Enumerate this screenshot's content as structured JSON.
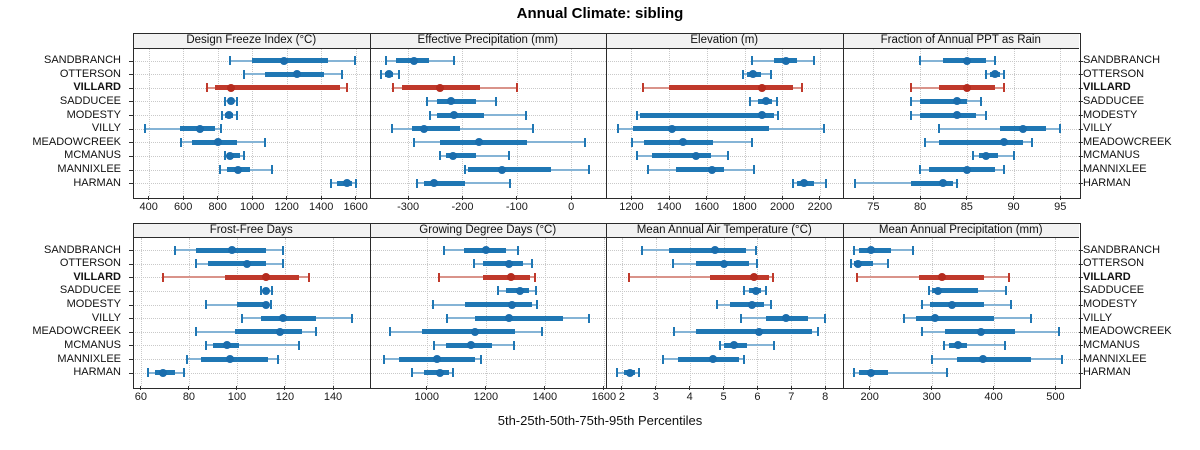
{
  "title": "Annual Climate: sibling",
  "caption": "5th-25th-50th-75th-95th Percentiles",
  "stations": [
    "SANDBRANCH",
    "OTTERSON",
    "VILLARD",
    "SADDUCEE",
    "MODESTY",
    "VILLY",
    "MEADOWCREEK",
    "MCMANUS",
    "MANNIXLEE",
    "HARMAN"
  ],
  "highlight_station": "VILLARD",
  "percentile_labels": [
    "5th",
    "25th",
    "50th",
    "75th",
    "95th"
  ],
  "colors": {
    "blue_main": "#1f77b4",
    "blue_light": "#85b4d6",
    "blue_dot": "#1a6dad",
    "red_main": "#c0392b",
    "red_light": "#d9938a",
    "red_dot": "#b52b1e",
    "strip_bg": "#f2f2f2",
    "panel_border": "#2b2b2b",
    "grid": "#c9c9c9",
    "text": "#111111"
  },
  "chart_data": [
    {
      "type": "percentile_dotplot",
      "key": "design_freeze_index",
      "title": "Design Freeze Index (°C)",
      "row": 0,
      "col": 0,
      "xlim": [
        309,
        1680
      ],
      "ticks": [
        {
          "value": 400,
          "label": "400"
        },
        {
          "value": 600,
          "label": "600"
        },
        {
          "value": 800,
          "label": "800"
        },
        {
          "value": 1000,
          "label": "1000"
        },
        {
          "value": 1200,
          "label": "1200"
        },
        {
          "value": 1400,
          "label": "1400"
        },
        {
          "value": 1600,
          "label": "1600"
        }
      ],
      "values": {
        "SANDBRANCH": [
          870,
          1000,
          1185,
          1440,
          1595
        ],
        "OTTERSON": [
          950,
          1075,
          1260,
          1415,
          1520
        ],
        "VILLARD": [
          740,
          785,
          875,
          1510,
          1550
        ],
        "SADDUCEE": [
          845,
          860,
          880,
          895,
          910
        ],
        "MODESTY": [
          825,
          845,
          865,
          890,
          910
        ],
        "VILLY": [
          380,
          580,
          700,
          785,
          820
        ],
        "MEADOWCREEK": [
          590,
          650,
          800,
          910,
          1075
        ],
        "MCMANUS": [
          845,
          855,
          870,
          930,
          950
        ],
        "MANNIXLEE": [
          815,
          855,
          920,
          990,
          1115
        ],
        "HARMAN": [
          1455,
          1490,
          1550,
          1580,
          1600
        ]
      }
    },
    {
      "type": "percentile_dotplot",
      "key": "effective_precipitation",
      "title": "Effective Precipitation (mm)",
      "row": 0,
      "col": 1,
      "xlim": [
        -371,
        64
      ],
      "ticks": [
        {
          "value": -300,
          "label": "-300"
        },
        {
          "value": -200,
          "label": "-200"
        },
        {
          "value": -100,
          "label": "-100"
        },
        {
          "value": 0,
          "label": "0"
        }
      ],
      "values": {
        "SANDBRANCH": [
          -340,
          -323,
          -290,
          -262,
          -216
        ],
        "OTTERSON": [
          -350,
          -343,
          -335,
          -327,
          -317
        ],
        "VILLARD": [
          -327,
          -311,
          -241,
          -167,
          -100
        ],
        "SADDUCEE": [
          -265,
          -247,
          -222,
          -176,
          -139
        ],
        "MODESTY": [
          -259,
          -247,
          -216,
          -161,
          -84
        ],
        "VILLY": [
          -330,
          -293,
          -270,
          -204,
          -71
        ],
        "MEADOWCREEK": [
          -290,
          -241,
          -170,
          -81,
          26
        ],
        "MCMANUS": [
          -241,
          -231,
          -218,
          -176,
          -115
        ],
        "MANNIXLEE": [
          -195,
          -189,
          -127,
          -38,
          32
        ],
        "HARMAN": [
          -284,
          -271,
          -253,
          -195,
          -112
        ]
      }
    },
    {
      "type": "percentile_dotplot",
      "key": "elevation",
      "title": "Elevation (m)",
      "row": 0,
      "col": 2,
      "xlim": [
        1065,
        2320
      ],
      "ticks": [
        {
          "value": 1200,
          "label": "1200"
        },
        {
          "value": 1400,
          "label": "1400"
        },
        {
          "value": 1600,
          "label": "1600"
        },
        {
          "value": 1800,
          "label": "1800"
        },
        {
          "value": 2000,
          "label": "2000"
        },
        {
          "value": 2200,
          "label": "2200"
        }
      ],
      "values": {
        "SANDBRANCH": [
          1840,
          1955,
          2020,
          2080,
          2170
        ],
        "OTTERSON": [
          1790,
          1815,
          1845,
          1885,
          1940
        ],
        "VILLARD": [
          1260,
          1400,
          1895,
          2060,
          2105
        ],
        "SADDUCEE": [
          1830,
          1870,
          1915,
          1945,
          1975
        ],
        "MODESTY": [
          1230,
          1245,
          1895,
          1955,
          1980
        ],
        "VILLY": [
          1130,
          1210,
          1415,
          1930,
          2220
        ],
        "MEADOWCREEK": [
          1205,
          1265,
          1475,
          1635,
          1840
        ],
        "MCMANUS": [
          1230,
          1310,
          1545,
          1620,
          1715
        ],
        "MANNIXLEE": [
          1290,
          1435,
          1630,
          1690,
          1850
        ],
        "HARMAN": [
          2055,
          2080,
          2115,
          2170,
          2230
        ]
      }
    },
    {
      "type": "percentile_dotplot",
      "key": "fraction_ppt_rain",
      "title": "Fraction of Annual PPT as Rain",
      "row": 0,
      "col": 3,
      "xlim": [
        71.7,
        97.0
      ],
      "ticks": [
        {
          "value": 75,
          "label": "75"
        },
        {
          "value": 80,
          "label": "80"
        },
        {
          "value": 85,
          "label": "85"
        },
        {
          "value": 90,
          "label": "90"
        },
        {
          "value": 95,
          "label": "95"
        }
      ],
      "values": {
        "SANDBRANCH": [
          80,
          82.5,
          85,
          87,
          88
        ],
        "OTTERSON": [
          87,
          87.5,
          88,
          88.6,
          89
        ],
        "VILLARD": [
          79,
          82,
          85,
          88,
          89
        ],
        "SADDUCEE": [
          79,
          80,
          84,
          85,
          86.5
        ],
        "MODESTY": [
          79,
          80,
          84,
          86,
          87
        ],
        "VILLY": [
          82,
          88.5,
          91,
          93.5,
          95
        ],
        "MEADOWCREEK": [
          80.5,
          82,
          89,
          91,
          92
        ],
        "MCMANUS": [
          85.7,
          86.3,
          87,
          88.3,
          90
        ],
        "MANNIXLEE": [
          80,
          81,
          85,
          88,
          89
        ],
        "HARMAN": [
          73,
          79,
          82.5,
          83.5,
          84
        ]
      }
    },
    {
      "type": "percentile_dotplot",
      "key": "frost_free_days",
      "title": "Frost-Free Days",
      "row": 1,
      "col": 0,
      "xlim": [
        56.7,
        155.2
      ],
      "ticks": [
        {
          "value": 60,
          "label": "60"
        },
        {
          "value": 80,
          "label": "80"
        },
        {
          "value": 100,
          "label": "100"
        },
        {
          "value": 120,
          "label": "120"
        },
        {
          "value": 140,
          "label": "140"
        }
      ],
      "values": {
        "SANDBRANCH": [
          74,
          83,
          98,
          112,
          119
        ],
        "OTTERSON": [
          83,
          88,
          104,
          112,
          119
        ],
        "VILLARD": [
          69,
          95,
          112,
          126,
          130
        ],
        "SADDUCEE": [
          110,
          111,
          112,
          113.5,
          114.5
        ],
        "MODESTY": [
          87,
          100,
          112,
          113,
          114
        ],
        "VILLY": [
          102,
          110,
          119,
          133,
          148
        ],
        "MEADOWCREEK": [
          83,
          99,
          118,
          127,
          133
        ],
        "MCMANUS": [
          87,
          90,
          96,
          101,
          126
        ],
        "MANNIXLEE": [
          79,
          85,
          97,
          113,
          117
        ],
        "HARMAN": [
          63,
          66,
          69,
          74,
          78
        ]
      }
    },
    {
      "type": "percentile_dotplot",
      "key": "growing_degree_days",
      "title": "Growing Degree Days (°C)",
      "row": 1,
      "col": 1,
      "xlim": [
        806,
        1607
      ],
      "ticks": [
        {
          "value": 1000,
          "label": "1000"
        },
        {
          "value": 1200,
          "label": "1200"
        },
        {
          "value": 1400,
          "label": "1400"
        },
        {
          "value": 1600,
          "label": "1600"
        }
      ],
      "values": {
        "SANDBRANCH": [
          1060,
          1125,
          1200,
          1270,
          1310
        ],
        "OTTERSON": [
          1160,
          1190,
          1280,
          1325,
          1355
        ],
        "VILLARD": [
          1040,
          1190,
          1285,
          1350,
          1365
        ],
        "SADDUCEE": [
          1240,
          1267,
          1315,
          1345,
          1370
        ],
        "MODESTY": [
          1020,
          1130,
          1290,
          1355,
          1372
        ],
        "VILLY": [
          1070,
          1165,
          1280,
          1460,
          1550
        ],
        "MEADOWCREEK": [
          875,
          985,
          1165,
          1300,
          1390
        ],
        "MCMANUS": [
          1025,
          1065,
          1150,
          1220,
          1295
        ],
        "MANNIXLEE": [
          855,
          905,
          1035,
          1165,
          1185
        ],
        "HARMAN": [
          950,
          990,
          1045,
          1075,
          1090
        ]
      }
    },
    {
      "type": "percentile_dotplot",
      "key": "mean_annual_air_temperature",
      "title": "Mean Annual Air Temperature (°C)",
      "row": 1,
      "col": 2,
      "xlim": [
        1.53,
        8.51
      ],
      "ticks": [
        {
          "value": 2,
          "label": "2"
        },
        {
          "value": 3,
          "label": "3"
        },
        {
          "value": 4,
          "label": "4"
        },
        {
          "value": 5,
          "label": "5"
        },
        {
          "value": 6,
          "label": "6"
        },
        {
          "value": 7,
          "label": "7"
        },
        {
          "value": 8,
          "label": "8"
        }
      ],
      "values": {
        "SANDBRANCH": [
          2.6,
          3.4,
          4.75,
          5.65,
          5.95
        ],
        "OTTERSON": [
          3.5,
          4.2,
          5.0,
          5.75,
          6.0
        ],
        "VILLARD": [
          2.2,
          4.6,
          5.9,
          6.35,
          6.45
        ],
        "SADDUCEE": [
          5.6,
          5.75,
          5.95,
          6.1,
          6.25
        ],
        "MODESTY": [
          4.8,
          5.2,
          5.85,
          6.2,
          6.4
        ],
        "VILLY": [
          5.5,
          6.25,
          6.85,
          7.5,
          8.0
        ],
        "MEADOWCREEK": [
          3.55,
          4.2,
          6.05,
          7.6,
          7.8
        ],
        "MCMANUS": [
          4.9,
          5.0,
          5.3,
          5.7,
          6.5
        ],
        "MANNIXLEE": [
          3.2,
          3.65,
          4.7,
          5.45,
          5.6
        ],
        "HARMAN": [
          1.85,
          2.05,
          2.25,
          2.4,
          2.5
        ]
      }
    },
    {
      "type": "percentile_dotplot",
      "key": "mean_annual_precipitation",
      "title": "Mean Annual Precipitation (mm)",
      "row": 1,
      "col": 3,
      "xlim": [
        156,
        538
      ],
      "ticks": [
        {
          "value": 200,
          "label": "200"
        },
        {
          "value": 300,
          "label": "300"
        },
        {
          "value": 400,
          "label": "400"
        },
        {
          "value": 500,
          "label": "500"
        }
      ],
      "values": {
        "SANDBRANCH": [
          175,
          182,
          202,
          235,
          270
        ],
        "OTTERSON": [
          170,
          174,
          181,
          205,
          230
        ],
        "VILLARD": [
          180,
          280,
          316,
          385,
          425
        ],
        "SADDUCEE": [
          295,
          300,
          310,
          375,
          420
        ],
        "MODESTY": [
          285,
          298,
          333,
          385,
          428
        ],
        "VILLY": [
          255,
          275,
          306,
          400,
          460
        ],
        "MEADOWCREEK": [
          285,
          322,
          380,
          435,
          505
        ],
        "MCMANUS": [
          320,
          328,
          342,
          357,
          418
        ],
        "MANNIXLEE": [
          300,
          341,
          383,
          460,
          510
        ],
        "HARMAN": [
          175,
          182,
          202,
          230,
          325
        ]
      }
    }
  ]
}
